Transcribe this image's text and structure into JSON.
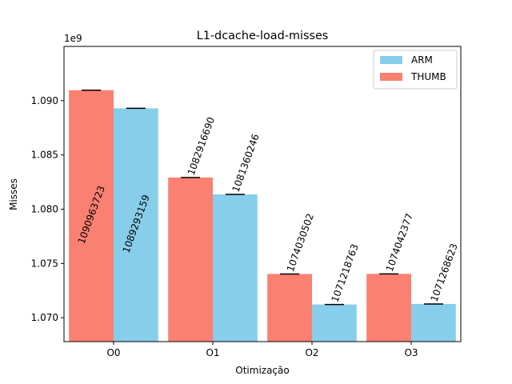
{
  "chart_data": {
    "type": "bar",
    "title": "L1-dcache-load-misses",
    "xlabel": "Otimização",
    "ylabel": "Misses",
    "offset_label": "1e9",
    "categories": [
      "O0",
      "O1",
      "O2",
      "O3"
    ],
    "series": [
      {
        "name": "THUMB",
        "color": "#fa8072",
        "values": [
          1090963723,
          1082916690,
          1074030502,
          1074042377
        ],
        "labels": [
          "1090963723",
          "1082916690",
          "1074030502",
          "1074042377"
        ]
      },
      {
        "name": "ARM",
        "color": "#87ceeb",
        "values": [
          1089293159,
          1081360246,
          1071218763,
          1071268623
        ],
        "labels": [
          "1089293159",
          "1081360246",
          "1071218763",
          "1071268623"
        ]
      }
    ],
    "legend": [
      {
        "name": "ARM",
        "color": "#87ceeb"
      },
      {
        "name": "THUMB",
        "color": "#fa8072"
      }
    ],
    "legend_position": "top-right",
    "ylim": [
      1067800000,
      1095000000
    ],
    "yticks": [
      1070000000,
      1075000000,
      1080000000,
      1085000000,
      1090000000
    ],
    "ytick_labels": [
      "1.070",
      "1.075",
      "1.080",
      "1.085",
      "1.090"
    ],
    "grid": false
  }
}
